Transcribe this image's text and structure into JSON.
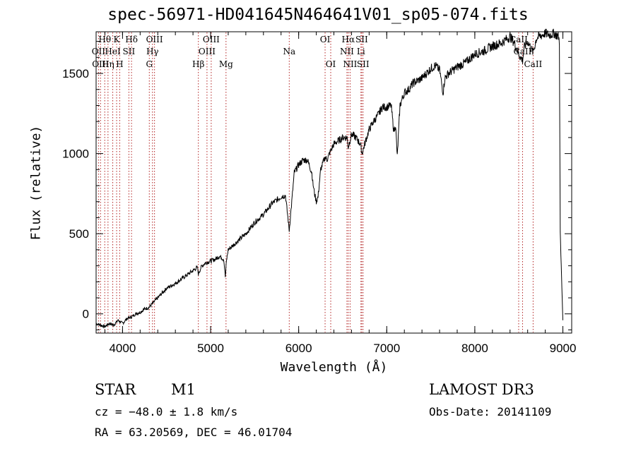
{
  "chart_data": {
    "type": "line",
    "title": "spec-56971-HD041645N464641V01_sp05-074.fits",
    "xlabel": "Wavelength (Å)",
    "ylabel": "Flux (relative)",
    "xlim": [
      3700,
      9100
    ],
    "ylim": [
      -120,
      1760
    ],
    "xticks": [
      4000,
      5000,
      6000,
      7000,
      8000,
      9000
    ],
    "yticks": [
      0,
      500,
      1000,
      1500
    ],
    "grid": false,
    "series": [
      {
        "name": "flux",
        "x": [
          3700,
          3750,
          3800,
          3850,
          3900,
          3950,
          4000,
          4050,
          4100,
          4150,
          4200,
          4250,
          4300,
          4350,
          4400,
          4450,
          4500,
          4600,
          4700,
          4800,
          4850,
          4861,
          4900,
          4950,
          5000,
          5050,
          5100,
          5150,
          5167,
          5180,
          5200,
          5300,
          5400,
          5500,
          5600,
          5700,
          5800,
          5850,
          5893,
          5950,
          6000,
          6050,
          6100,
          6150,
          6160,
          6180,
          6200,
          6220,
          6250,
          6300,
          6320,
          6350,
          6400,
          6450,
          6500,
          6550,
          6563,
          6600,
          6650,
          6700,
          6720,
          6750,
          6800,
          6850,
          6900,
          6950,
          7000,
          7050,
          7080,
          7100,
          7120,
          7150,
          7200,
          7250,
          7300,
          7400,
          7500,
          7550,
          7600,
          7640,
          7660,
          7700,
          7800,
          7900,
          8000,
          8100,
          8200,
          8300,
          8400,
          8450,
          8500,
          8542,
          8560,
          8600,
          8662,
          8700,
          8800,
          8850,
          8900,
          8950,
          8960,
          8970,
          9000
        ],
        "y": [
          -60,
          -70,
          -80,
          -60,
          -70,
          -40,
          -60,
          -30,
          -20,
          0,
          10,
          30,
          40,
          70,
          100,
          130,
          160,
          190,
          230,
          270,
          290,
          250,
          300,
          320,
          330,
          340,
          360,
          340,
          230,
          330,
          400,
          450,
          500,
          570,
          620,
          690,
          730,
          740,
          520,
          880,
          930,
          960,
          960,
          880,
          820,
          750,
          700,
          730,
          900,
          980,
          960,
          1000,
          1060,
          1080,
          1100,
          1100,
          1040,
          1120,
          1100,
          1060,
          1000,
          1060,
          1150,
          1200,
          1240,
          1290,
          1290,
          1300,
          1140,
          1180,
          980,
          1300,
          1380,
          1400,
          1440,
          1470,
          1530,
          1550,
          1520,
          1380,
          1470,
          1500,
          1540,
          1570,
          1620,
          1640,
          1670,
          1690,
          1730,
          1690,
          1620,
          1580,
          1660,
          1700,
          1630,
          1720,
          1750,
          1740,
          1750,
          1730,
          1700,
          500,
          -40
        ]
      }
    ],
    "lines": [
      {
        "wl": 3727,
        "label": "OII",
        "row": 2
      },
      {
        "wl": 3750,
        "label": "OIII",
        "row": 3
      },
      {
        "wl": 3798,
        "label": "Hθ",
        "row": 1
      },
      {
        "wl": 3835,
        "label": "Hη",
        "row": 3
      },
      {
        "wl": 3889,
        "label": "HeI",
        "row": 2
      },
      {
        "wl": 3933,
        "label": "K",
        "row": 1
      },
      {
        "wl": 3968,
        "label": "H",
        "row": 3
      },
      {
        "wl": 4072,
        "label": "SII",
        "row": 2
      },
      {
        "wl": 4102,
        "label": "Hδ",
        "row": 1
      },
      {
        "wl": 4304,
        "label": "G",
        "row": 3
      },
      {
        "wl": 4340,
        "label": "Hγ",
        "row": 2
      },
      {
        "wl": 4363,
        "label": "OIII",
        "row": 1
      },
      {
        "wl": 4861,
        "label": "Hβ",
        "row": 3
      },
      {
        "wl": 4959,
        "label": "OIII",
        "row": 2
      },
      {
        "wl": 5007,
        "label": "OIII",
        "row": 1
      },
      {
        "wl": 5175,
        "label": "Mg",
        "row": 3
      },
      {
        "wl": 5893,
        "label": "Na",
        "row": 2
      },
      {
        "wl": 6300,
        "label": "OI",
        "row": 1
      },
      {
        "wl": 6364,
        "label": "OI",
        "row": 3
      },
      {
        "wl": 6548,
        "label": "NII",
        "row": 2
      },
      {
        "wl": 6563,
        "label": "Hα",
        "row": 1
      },
      {
        "wl": 6584,
        "label": "NII",
        "row": 3
      },
      {
        "wl": 6707,
        "label": "Li",
        "row": 2
      },
      {
        "wl": 6716,
        "label": "SII",
        "row": 1
      },
      {
        "wl": 6731,
        "label": "SII",
        "row": 3
      },
      {
        "wl": 8498,
        "label": "CaII",
        "row": 1
      },
      {
        "wl": 8542,
        "label": "CaII",
        "row": 2
      },
      {
        "wl": 8662,
        "label": "CaII",
        "row": 3
      }
    ]
  },
  "info": {
    "class": "STAR",
    "subclass": "M1",
    "survey": "LAMOST DR3",
    "cz": "cz = −48.0 ± 1.8 km/s",
    "obs_date": "Obs-Date: 20141109",
    "coords": "RA =  63.20569, DEC =  46.01704"
  },
  "colors": {
    "line": "#000000",
    "marker": "#b22222",
    "axis": "#000000"
  }
}
